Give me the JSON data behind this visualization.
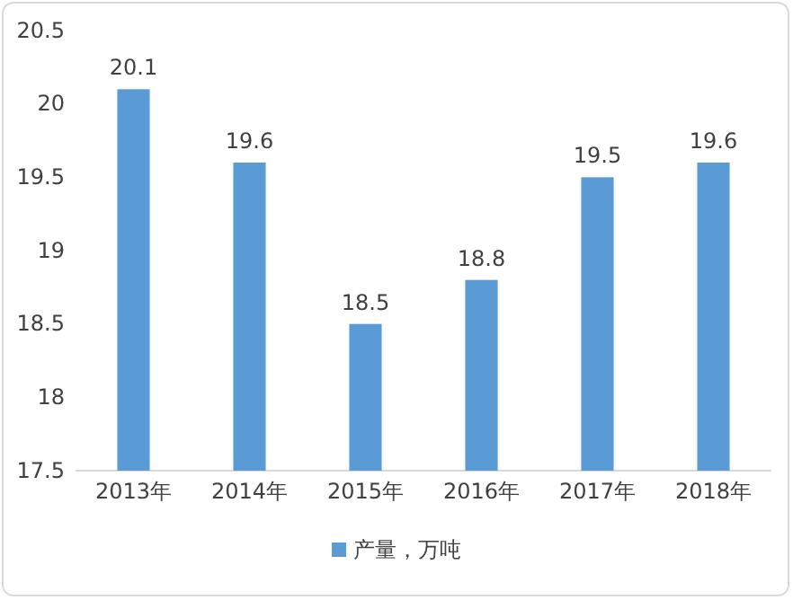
{
  "chart_data": {
    "type": "bar",
    "categories": [
      "2013年",
      "2014年",
      "2015年",
      "2016年",
      "2017年",
      "2018年"
    ],
    "series": [
      {
        "name": "产量，万吨",
        "color": "#5b9bd5",
        "values": [
          20.1,
          19.6,
          18.5,
          18.8,
          19.5,
          19.6
        ]
      }
    ],
    "ylim": [
      17.5,
      20.5
    ],
    "yticks": [
      17.5,
      18,
      18.5,
      19,
      19.5,
      20,
      20.5
    ],
    "data_labels": true,
    "legend": "bottom",
    "grid": false
  }
}
